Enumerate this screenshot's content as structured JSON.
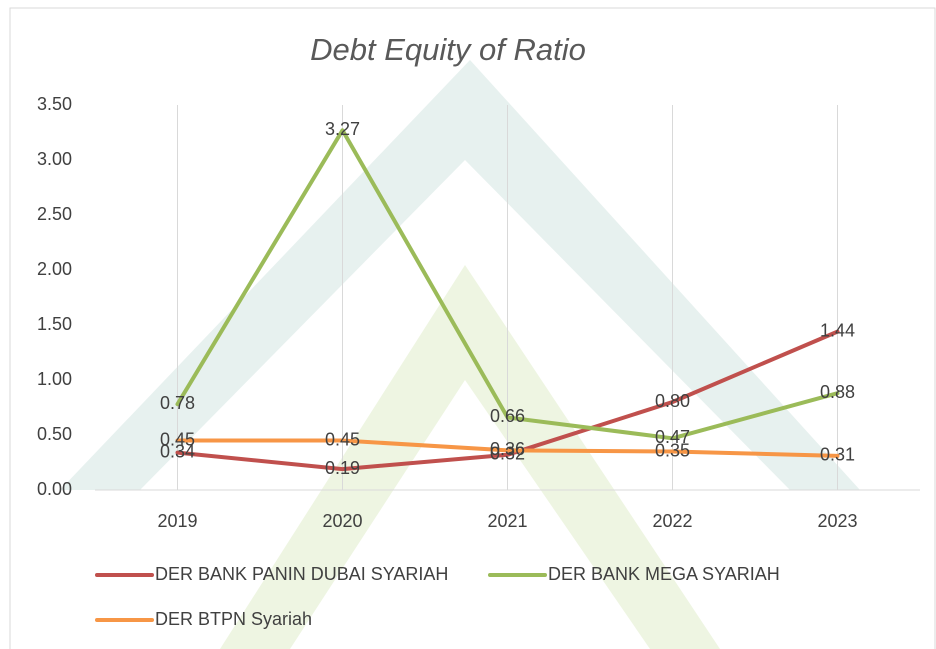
{
  "chart_data": {
    "type": "line",
    "title": "Debt Equity of Ratio",
    "categories": [
      "2019",
      "2020",
      "2021",
      "2022",
      "2023"
    ],
    "series": [
      {
        "name": "DER BANK PANIN DUBAI SYARIAH",
        "color": "#c0504d",
        "values": [
          0.34,
          0.19,
          0.32,
          0.8,
          1.44
        ],
        "value_labels": [
          "0.34",
          "0.19",
          "0.32",
          "0.80",
          "1.44"
        ]
      },
      {
        "name": "DER BANK MEGA SYARIAH",
        "color": "#9bbb59",
        "values": [
          0.78,
          3.27,
          0.66,
          0.47,
          0.88
        ],
        "value_labels": [
          "0.78",
          "3.27",
          "0.66",
          "0.47",
          "0.88"
        ]
      },
      {
        "name": "DER BTPN Syariah",
        "color": "#f79646",
        "values": [
          0.45,
          0.45,
          0.36,
          0.35,
          0.31
        ],
        "value_labels": [
          "0.45",
          "0.45",
          "0.36",
          "0.35",
          "0.31"
        ]
      }
    ],
    "ylim": [
      0,
      3.5
    ],
    "yticks": [
      {
        "value": 0,
        "label": "0.00"
      },
      {
        "value": 0.5,
        "label": "0.50"
      },
      {
        "value": 1,
        "label": "1.00"
      },
      {
        "value": 1.5,
        "label": "1.50"
      },
      {
        "value": 2,
        "label": "2.00"
      },
      {
        "value": 2.5,
        "label": "2.50"
      },
      {
        "value": 3,
        "label": "3.00"
      },
      {
        "value": 3.5,
        "label": "3.50"
      }
    ],
    "xgrid": true,
    "legend": "bottom"
  }
}
